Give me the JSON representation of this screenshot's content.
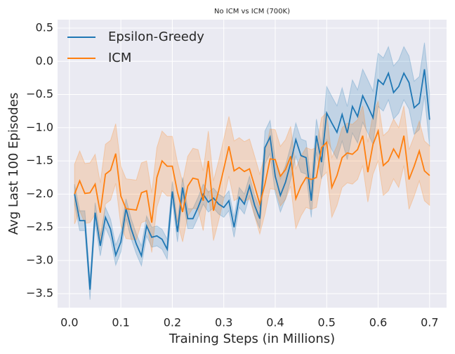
{
  "chart_data": {
    "type": "line",
    "title": "No ICM vs ICM (700K)",
    "x_label": "Training Steps (in Millions)",
    "y_label": "Avg Last 100 Episodes",
    "legend": "upper left",
    "grid": true,
    "xlim": [
      -0.023,
      0.733
    ],
    "ylim": [
      -3.71,
      0.627
    ],
    "xticks": [
      {
        "value": 0,
        "label": "0.0"
      },
      0.1,
      0.2,
      0.3,
      0.4,
      0.5,
      0.6,
      0.7
    ],
    "yticks": [
      {
        "value": -3.5,
        "label": "−3.5"
      },
      {
        "value": -3,
        "label": "−3.0"
      },
      {
        "value": -2.5,
        "label": "−2.5"
      },
      {
        "value": -2,
        "label": "−2.0"
      },
      {
        "value": -1.5,
        "label": "−1.5"
      },
      {
        "value": -1,
        "label": "−1.0"
      },
      {
        "value": -0.5,
        "label": "−0.5"
      },
      {
        "value": 0,
        "label": "0.0"
      },
      0.5
    ],
    "x": [
      0.01,
      0.02,
      0.03,
      0.04,
      0.05,
      0.06,
      0.07,
      0.08,
      0.09,
      0.1,
      0.11,
      0.12,
      0.13,
      0.14,
      0.15,
      0.16,
      0.17,
      0.18,
      0.19,
      0.2,
      0.21,
      0.22,
      0.23,
      0.24,
      0.25,
      0.26,
      0.27,
      0.28,
      0.29,
      0.3,
      0.31,
      0.32,
      0.33,
      0.34,
      0.35,
      0.36,
      0.37,
      0.38,
      0.39,
      0.4,
      0.41,
      0.42,
      0.43,
      0.44,
      0.45,
      0.46,
      0.47,
      0.48,
      0.49,
      0.5,
      0.51,
      0.52,
      0.53,
      0.54,
      0.55,
      0.56,
      0.57,
      0.58,
      0.59,
      0.6,
      0.61,
      0.62,
      0.63,
      0.64,
      0.65,
      0.66,
      0.67,
      0.68,
      0.69,
      0.7
    ],
    "series": [
      {
        "name": "Epsilon-Greedy",
        "color": "#1f77b4",
        "values": [
          -2.0,
          -2.4,
          -2.4,
          -3.44,
          -2.28,
          -2.78,
          -2.35,
          -2.53,
          -2.92,
          -2.72,
          -2.22,
          -2.52,
          -2.75,
          -2.93,
          -2.48,
          -2.65,
          -2.63,
          -2.68,
          -2.83,
          -1.96,
          -2.57,
          -1.9,
          -2.37,
          -2.37,
          -2.2,
          -2.0,
          -2.12,
          -2.06,
          -2.15,
          -2.2,
          -2.1,
          -2.5,
          -2.05,
          -2.15,
          -1.88,
          -2.17,
          -2.37,
          -1.3,
          -1.14,
          -1.73,
          -2.02,
          -1.82,
          -1.53,
          -1.18,
          -1.42,
          -1.45,
          -2.1,
          -1.12,
          -1.52,
          -0.78,
          -0.93,
          -1.07,
          -0.8,
          -1.08,
          -0.68,
          -0.83,
          -0.52,
          -0.68,
          -0.85,
          -0.28,
          -0.35,
          -0.18,
          -0.47,
          -0.38,
          -0.18,
          -0.32,
          -0.7,
          -0.63,
          -0.12,
          -0.88
        ],
        "lower": [
          -2.15,
          -2.55,
          -2.55,
          -3.59,
          -2.43,
          -2.93,
          -2.5,
          -2.68,
          -3.07,
          -2.87,
          -2.37,
          -2.67,
          -2.9,
          -3.08,
          -2.63,
          -2.8,
          -2.78,
          -2.83,
          -2.98,
          -2.11,
          -2.72,
          -2.05,
          -2.52,
          -2.52,
          -2.35,
          -2.15,
          -2.27,
          -2.21,
          -2.3,
          -2.35,
          -2.25,
          -2.65,
          -2.2,
          -2.3,
          -2.03,
          -2.32,
          -2.52,
          -1.55,
          -1.39,
          -1.98,
          -2.27,
          -2.07,
          -1.78,
          -1.43,
          -1.67,
          -1.7,
          -2.35,
          -1.37,
          -1.77,
          -1.18,
          -1.33,
          -1.47,
          -1.2,
          -1.48,
          -1.08,
          -1.23,
          -0.92,
          -1.08,
          -1.25,
          -0.68,
          -0.75,
          -0.58,
          -0.87,
          -0.78,
          -0.58,
          -0.72,
          -1.1,
          -1.03,
          -0.52,
          -1.28
        ],
        "upper": [
          -1.85,
          -2.25,
          -2.25,
          -3.29,
          -2.13,
          -2.63,
          -2.2,
          -2.38,
          -2.77,
          -2.57,
          -2.07,
          -2.37,
          -2.6,
          -2.78,
          -2.33,
          -2.5,
          -2.48,
          -2.53,
          -2.68,
          -1.81,
          -2.42,
          -1.75,
          -2.22,
          -2.22,
          -2.05,
          -1.85,
          -1.97,
          -1.91,
          -2.0,
          -2.05,
          -1.95,
          -2.35,
          -1.9,
          -2.0,
          -1.73,
          -2.02,
          -2.22,
          -1.05,
          -0.89,
          -1.48,
          -1.77,
          -1.57,
          -1.28,
          -0.93,
          -1.17,
          -1.2,
          -1.85,
          -0.87,
          -1.27,
          -0.38,
          -0.53,
          -0.67,
          -0.4,
          -0.68,
          -0.28,
          -0.43,
          -0.12,
          -0.28,
          -0.45,
          0.12,
          0.05,
          0.22,
          -0.07,
          0.02,
          0.22,
          0.08,
          -0.3,
          -0.23,
          0.28,
          -0.48
        ]
      },
      {
        "name": "ICM",
        "color": "#ff7f0e",
        "values": [
          -2.0,
          -1.8,
          -1.99,
          -1.98,
          -1.85,
          -2.28,
          -1.7,
          -1.64,
          -1.39,
          -2.03,
          -2.22,
          -2.23,
          -2.24,
          -1.98,
          -1.95,
          -2.43,
          -1.75,
          -1.5,
          -1.58,
          -1.58,
          -1.97,
          -2.27,
          -1.88,
          -1.76,
          -1.78,
          -2.1,
          -1.5,
          -2.25,
          -1.95,
          -1.62,
          -1.28,
          -1.65,
          -1.6,
          -1.66,
          -1.62,
          -1.88,
          -2.15,
          -1.85,
          -1.47,
          -1.48,
          -1.73,
          -1.63,
          -1.43,
          -2.07,
          -1.88,
          -1.75,
          -1.78,
          -1.75,
          -1.3,
          -1.22,
          -1.9,
          -1.72,
          -1.45,
          -1.38,
          -1.4,
          -1.33,
          -1.12,
          -1.67,
          -1.25,
          -1.05,
          -1.57,
          -1.5,
          -1.32,
          -1.45,
          -1.12,
          -1.78,
          -1.58,
          -1.35,
          -1.65,
          -1.72
        ],
        "lower": [
          -2.45,
          -2.25,
          -2.44,
          -2.43,
          -2.3,
          -2.73,
          -2.15,
          -2.09,
          -1.84,
          -2.48,
          -2.67,
          -2.68,
          -2.69,
          -2.43,
          -2.4,
          -2.88,
          -2.2,
          -1.95,
          -2.03,
          -2.03,
          -2.42,
          -2.72,
          -2.33,
          -2.21,
          -2.23,
          -2.55,
          -1.95,
          -2.7,
          -2.4,
          -2.07,
          -1.73,
          -2.1,
          -2.05,
          -2.11,
          -2.07,
          -2.33,
          -2.6,
          -2.3,
          -1.92,
          -1.93,
          -2.18,
          -2.08,
          -1.88,
          -2.52,
          -2.33,
          -2.2,
          -2.23,
          -2.2,
          -1.75,
          -1.67,
          -2.35,
          -2.17,
          -1.9,
          -1.83,
          -1.85,
          -1.78,
          -1.57,
          -2.12,
          -1.7,
          -1.5,
          -2.02,
          -1.95,
          -1.77,
          -1.9,
          -1.57,
          -2.23,
          -2.03,
          -1.8,
          -2.1,
          -2.17
        ],
        "upper": [
          -1.55,
          -1.35,
          -1.54,
          -1.53,
          -1.4,
          -1.83,
          -1.25,
          -1.19,
          -0.94,
          -1.58,
          -1.77,
          -1.78,
          -1.79,
          -1.53,
          -1.5,
          -1.98,
          -1.3,
          -1.05,
          -1.13,
          -1.13,
          -1.52,
          -1.82,
          -1.43,
          -1.31,
          -1.33,
          -1.65,
          -1.05,
          -1.8,
          -1.5,
          -1.17,
          -0.83,
          -1.2,
          -1.15,
          -1.21,
          -1.17,
          -1.43,
          -1.7,
          -1.4,
          -1.02,
          -1.03,
          -1.28,
          -1.18,
          -0.98,
          -1.62,
          -1.43,
          -1.3,
          -1.33,
          -1.3,
          -0.85,
          -0.77,
          -1.45,
          -1.27,
          -1.0,
          -0.93,
          -0.95,
          -0.88,
          -0.67,
          -1.22,
          -0.8,
          -0.6,
          -1.12,
          -1.05,
          -0.87,
          -1.0,
          -0.67,
          -1.33,
          -1.13,
          -0.9,
          -1.2,
          -1.27
        ]
      }
    ]
  }
}
